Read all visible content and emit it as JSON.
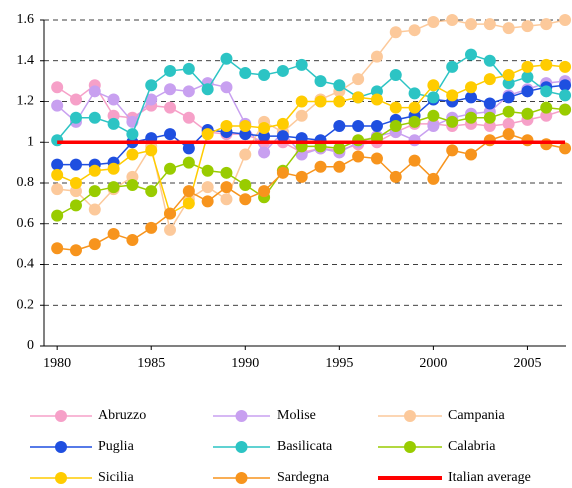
{
  "chart_data": {
    "type": "line",
    "x": [
      1980,
      1981,
      1982,
      1983,
      1984,
      1985,
      1986,
      1987,
      1988,
      1989,
      1990,
      1991,
      1992,
      1993,
      1994,
      1995,
      1996,
      1997,
      1998,
      1999,
      2000,
      2001,
      2002,
      2003,
      2004,
      2005,
      2006,
      2007
    ],
    "xlim": [
      1979.3,
      2007.05
    ],
    "xticks": [
      1980,
      1985,
      1990,
      1995,
      2000,
      2005
    ],
    "ylim": [
      0,
      1.6
    ],
    "yticks": [
      0,
      0.2,
      0.4,
      0.6,
      0.8,
      1,
      1.2,
      1.4,
      1.6
    ],
    "grid": true,
    "legend": "bottom",
    "series": [
      {
        "name": "Abruzzo",
        "color": "#f6a0c8",
        "markers": true,
        "values": [
          1.27,
          1.21,
          1.28,
          1.13,
          1.12,
          1.18,
          1.17,
          1.12,
          1.05,
          1.04,
          1.04,
          1.0,
          1.0,
          0.95,
          0.97,
          0.96,
          0.99,
          1.0,
          1.05,
          1.09,
          1.09,
          1.08,
          1.09,
          1.08,
          1.09,
          1.11,
          1.13,
          1.16
        ]
      },
      {
        "name": "Molise",
        "color": "#c8a0f0",
        "markers": true,
        "values": [
          1.18,
          1.1,
          1.25,
          1.21,
          1.1,
          1.21,
          1.26,
          1.25,
          1.29,
          1.27,
          1.09,
          0.95,
          1.05,
          0.94,
          0.97,
          0.95,
          1.0,
          1.03,
          1.05,
          1.01,
          1.08,
          1.12,
          1.14,
          1.15,
          1.23,
          1.26,
          1.29,
          1.3
        ]
      },
      {
        "name": "Campania",
        "color": "#fcc99b",
        "markers": true,
        "values": [
          0.77,
          0.76,
          0.67,
          0.77,
          0.83,
          0.98,
          0.57,
          0.72,
          0.78,
          0.72,
          0.94,
          1.1,
          1.05,
          1.13,
          1.21,
          1.25,
          1.31,
          1.42,
          1.54,
          1.55,
          1.59,
          1.6,
          1.58,
          1.58,
          1.56,
          1.57,
          1.58,
          1.6
        ]
      },
      {
        "name": "Puglia",
        "color": "#1f4fe0",
        "markers": true,
        "values": [
          0.89,
          0.89,
          0.89,
          0.9,
          1.0,
          1.02,
          1.04,
          0.97,
          1.06,
          1.05,
          1.04,
          1.03,
          1.03,
          1.02,
          1.01,
          1.08,
          1.08,
          1.08,
          1.11,
          1.13,
          1.21,
          1.2,
          1.22,
          1.19,
          1.22,
          1.25,
          1.27,
          1.28
        ]
      },
      {
        "name": "Basilicata",
        "color": "#2cc4c4",
        "markers": true,
        "values": [
          1.01,
          1.12,
          1.12,
          1.09,
          1.04,
          1.28,
          1.35,
          1.36,
          1.26,
          1.41,
          1.34,
          1.33,
          1.35,
          1.38,
          1.3,
          1.28,
          1.22,
          1.25,
          1.33,
          1.24,
          1.22,
          1.37,
          1.43,
          1.4,
          1.29,
          1.32,
          1.25,
          1.23
        ]
      },
      {
        "name": "Calabria",
        "color": "#99cc00",
        "markers": true,
        "values": [
          0.64,
          0.69,
          0.76,
          0.78,
          0.79,
          0.76,
          0.87,
          0.9,
          0.86,
          0.85,
          0.79,
          0.73,
          0.86,
          0.98,
          0.98,
          0.97,
          1.01,
          1.02,
          1.08,
          1.1,
          1.13,
          1.1,
          1.12,
          1.12,
          1.15,
          1.14,
          1.17,
          1.16
        ]
      },
      {
        "name": "Sicilia",
        "color": "#ffcc00",
        "markers": true,
        "values": [
          0.84,
          0.8,
          0.86,
          0.87,
          0.94,
          0.96,
          0.65,
          0.7,
          1.04,
          1.08,
          1.08,
          1.07,
          1.09,
          1.2,
          1.2,
          1.2,
          1.22,
          1.21,
          1.17,
          1.17,
          1.28,
          1.23,
          1.27,
          1.31,
          1.33,
          1.37,
          1.38,
          1.37
        ]
      },
      {
        "name": "Sardegna",
        "color": "#f7941d",
        "markers": true,
        "values": [
          0.48,
          0.47,
          0.5,
          0.55,
          0.52,
          0.58,
          0.65,
          0.76,
          0.71,
          0.78,
          0.72,
          0.76,
          0.85,
          0.83,
          0.88,
          0.88,
          0.93,
          0.92,
          0.83,
          0.91,
          0.82,
          0.96,
          0.94,
          1.01,
          1.04,
          1.01,
          0.99,
          0.97
        ]
      },
      {
        "name": "Italian average",
        "color": "#ff0000",
        "markers": false,
        "values": [
          1,
          1,
          1,
          1,
          1,
          1,
          1,
          1,
          1,
          1,
          1,
          1,
          1,
          1,
          1,
          1,
          1,
          1,
          1,
          1,
          1,
          1,
          1,
          1,
          1,
          1,
          1,
          1
        ]
      }
    ]
  }
}
